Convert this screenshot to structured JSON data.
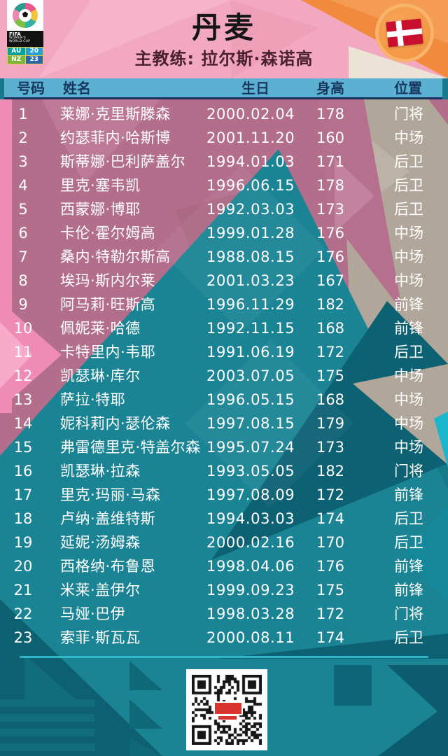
{
  "header": {
    "title": "丹麦",
    "coach": "主教练: 拉尔斯·森诺高",
    "fifa_badge": {
      "line1": "FIFA",
      "line2": "WOMEN'S",
      "line3": "WORLD CUP",
      "host_left_top": "AU",
      "host_left_bottom": "NZ",
      "year_top": "20",
      "year_bottom": "23"
    },
    "flag": "denmark"
  },
  "chart_data": {
    "type": "table",
    "title": "丹麦",
    "subtitle": "主教练: 拉尔斯·森诺高",
    "columns": [
      "号码",
      "姓名",
      "生日",
      "身高",
      "位置"
    ],
    "rows": [
      {
        "num": "1",
        "name": "莱娜·克里斯滕森",
        "birthday": "2000.02.04",
        "height": "178",
        "position": "门将"
      },
      {
        "num": "2",
        "name": "约瑟菲内·哈斯博",
        "birthday": "2001.11.20",
        "height": "160",
        "position": "中场"
      },
      {
        "num": "3",
        "name": "斯蒂娜·巴利萨盖尔",
        "birthday": "1994.01.03",
        "height": "171",
        "position": "后卫"
      },
      {
        "num": "4",
        "name": "里克·塞韦凯",
        "birthday": "1996.06.15",
        "height": "178",
        "position": "后卫"
      },
      {
        "num": "5",
        "name": "西蒙娜·博耶",
        "birthday": "1992.03.03",
        "height": "173",
        "position": "后卫"
      },
      {
        "num": "6",
        "name": "卡伦·霍尔姆高",
        "birthday": "1999.01.28",
        "height": "176",
        "position": "中场"
      },
      {
        "num": "7",
        "name": "桑内·特勒尔斯高",
        "birthday": "1988.08.15",
        "height": "176",
        "position": "中场"
      },
      {
        "num": "8",
        "name": "埃玛·斯内尔莱",
        "birthday": "2001.03.23",
        "height": "167",
        "position": "中场"
      },
      {
        "num": "9",
        "name": "阿马莉·旺斯高",
        "birthday": "1996.11.29",
        "height": "182",
        "position": "前锋"
      },
      {
        "num": "10",
        "name": "佩妮莱·哈德",
        "birthday": "1992.11.15",
        "height": "168",
        "position": "前锋"
      },
      {
        "num": "11",
        "name": "卡特里内·韦耶",
        "birthday": "1991.06.19",
        "height": "172",
        "position": "后卫"
      },
      {
        "num": "12",
        "name": "凯瑟琳·库尔",
        "birthday": "2003.07.05",
        "height": "175",
        "position": "中场"
      },
      {
        "num": "13",
        "name": "萨拉·特耶",
        "birthday": "1996.05.15",
        "height": "168",
        "position": "中场"
      },
      {
        "num": "14",
        "name": "妮科莉内·瑟伦森",
        "birthday": "1997.08.15",
        "height": "179",
        "position": "中场"
      },
      {
        "num": "15",
        "name": "弗雷德里克·特盖尔森",
        "birthday": "1995.07.24",
        "height": "173",
        "position": "中场"
      },
      {
        "num": "16",
        "name": "凯瑟琳·拉森",
        "birthday": "1993.05.05",
        "height": "182",
        "position": "门将"
      },
      {
        "num": "17",
        "name": "里克·玛丽·马森",
        "birthday": "1997.08.09",
        "height": "172",
        "position": "前锋"
      },
      {
        "num": "18",
        "name": "卢纳·盖维特斯",
        "birthday": "1994.03.03",
        "height": "174",
        "position": "后卫"
      },
      {
        "num": "19",
        "name": "延妮·汤姆森",
        "birthday": "2000.02.16",
        "height": "170",
        "position": "后卫"
      },
      {
        "num": "20",
        "name": "西格纳·布鲁恩",
        "birthday": "1998.04.06",
        "height": "176",
        "position": "前锋"
      },
      {
        "num": "21",
        "name": "米莱·盖伊尔",
        "birthday": "1999.09.23",
        "height": "175",
        "position": "前锋"
      },
      {
        "num": "22",
        "name": "马娅·巴伊",
        "birthday": "1998.03.28",
        "height": "172",
        "position": "门将"
      },
      {
        "num": "23",
        "name": "索菲·斯瓦瓦",
        "birthday": "2000.08.11",
        "height": "174",
        "position": "后卫"
      }
    ]
  },
  "colors": {
    "header_pink": "#f2a8c0",
    "accent_orange": "#f18a3c",
    "table_header_blue": "#5cb0d2",
    "table_header_text": "#17375f",
    "navy_line": "#14325a",
    "body_teal": "#177a8a",
    "mountain_teal": "#1b8494",
    "dark_teal": "#0c6173",
    "mauve": "#b26e8a",
    "tan": "#b0a79a",
    "pink_strip": "#ef8cb5",
    "bright_cyan": "#2fb7c9",
    "flag_red": "#c8102e",
    "row_text": "#ffffff",
    "subtitle_maroon": "#4b2130"
  }
}
